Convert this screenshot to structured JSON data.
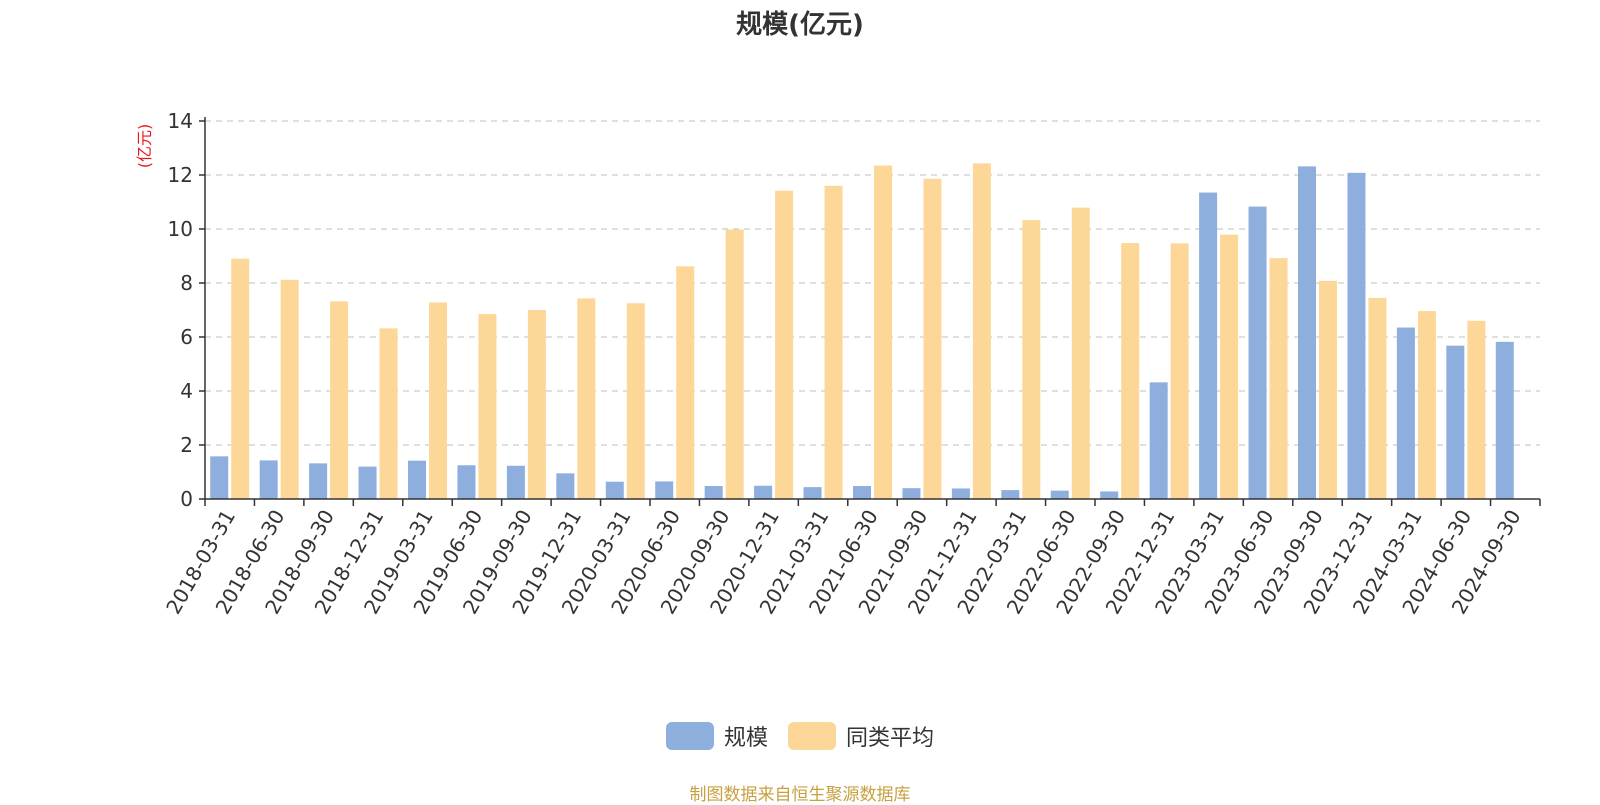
{
  "chart_data": {
    "type": "bar",
    "title": "规模(亿元)",
    "ylabel": "(亿元)",
    "ylim": [
      0,
      14
    ],
    "yticks": [
      0,
      2,
      4,
      6,
      8,
      10,
      12,
      14
    ],
    "grid": true,
    "legend_position": "bottom",
    "categories": [
      "2018-03-31",
      "2018-06-30",
      "2018-09-30",
      "2018-12-31",
      "2019-03-31",
      "2019-06-30",
      "2019-09-30",
      "2019-12-31",
      "2020-03-31",
      "2020-06-30",
      "2020-09-30",
      "2020-12-31",
      "2021-03-31",
      "2021-06-30",
      "2021-09-30",
      "2021-12-31",
      "2022-03-31",
      "2022-06-30",
      "2022-09-30",
      "2022-12-31",
      "2023-03-31",
      "2023-06-30",
      "2023-09-30",
      "2023-12-31",
      "2024-03-31",
      "2024-06-30",
      "2024-09-30"
    ],
    "series": [
      {
        "name": "规模",
        "color": "#8eaedd",
        "values": [
          1.58,
          1.43,
          1.32,
          1.2,
          1.42,
          1.25,
          1.23,
          0.95,
          0.64,
          0.65,
          0.48,
          0.49,
          0.44,
          0.48,
          0.4,
          0.39,
          0.33,
          0.31,
          0.28,
          4.32,
          11.35,
          10.83,
          12.32,
          12.08,
          6.35,
          5.68,
          5.82
        ]
      },
      {
        "name": "同类平均",
        "color": "#fdd797",
        "values": [
          8.9,
          8.12,
          7.32,
          6.32,
          7.28,
          6.85,
          7.0,
          7.43,
          7.25,
          8.62,
          9.98,
          11.42,
          11.6,
          12.35,
          11.86,
          12.43,
          10.33,
          10.79,
          9.48,
          9.47,
          9.79,
          8.92,
          8.08,
          7.45,
          6.96,
          6.6,
          null
        ]
      }
    ]
  },
  "source_note": "制图数据来自恒生聚源数据库"
}
